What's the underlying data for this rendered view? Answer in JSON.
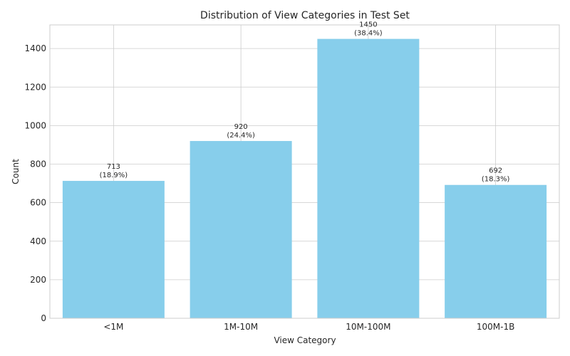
{
  "chart_data": {
    "type": "bar",
    "title": "Distribution of View Categories in Test Set",
    "xlabel": "View Category",
    "ylabel": "Count",
    "categories": [
      "<1M",
      "1M-10M",
      "10M-100M",
      "100M-1B"
    ],
    "values": [
      713,
      920,
      1450,
      692
    ],
    "value_labels": [
      "713",
      "920",
      "1450",
      "692"
    ],
    "percent_labels": [
      "(18.9%)",
      "(24.4%)",
      "(38.4%)",
      "(18.3%)"
    ],
    "ylim": [
      0,
      1522.5
    ],
    "yticks": [
      0,
      200,
      400,
      600,
      800,
      1000,
      1200,
      1400
    ],
    "ytick_labels": [
      "0",
      "200",
      "400",
      "600",
      "800",
      "1000",
      "1200",
      "1400"
    ],
    "grid": true,
    "bar_color": "#87ceeb"
  }
}
